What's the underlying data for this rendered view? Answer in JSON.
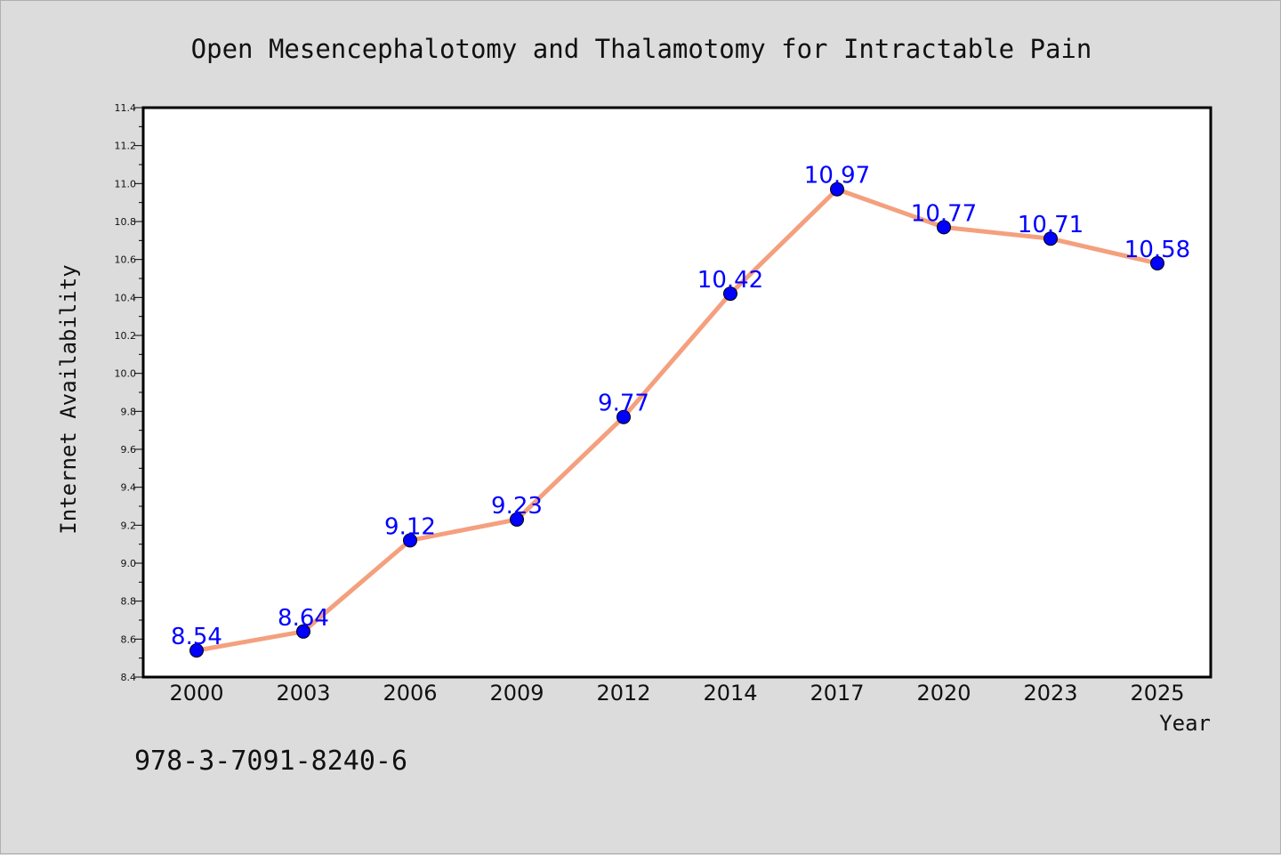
{
  "footnote": "978-3-7091-8240-6",
  "chart_data": {
    "type": "line",
    "title": "Open Mesencephalotomy and Thalamotomy for Intractable Pain",
    "xlabel": "Year",
    "ylabel": "Internet Availability",
    "categories": [
      "2000",
      "2003",
      "2006",
      "2009",
      "2012",
      "2014",
      "2017",
      "2020",
      "2023",
      "2025"
    ],
    "series": [
      {
        "values": [
          8.54,
          8.64,
          9.12,
          9.23,
          9.77,
          10.42,
          10.97,
          10.77,
          10.71,
          10.58
        ]
      }
    ],
    "data_labels": [
      "8.54",
      "8.64",
      "9.12",
      "9.23",
      "9.77",
      "10.42",
      "10.97",
      "10.77",
      "10.71",
      "10.58"
    ],
    "ylim": [
      8.4,
      11.4
    ],
    "yticks": [
      "8.4",
      "8.6",
      "8.8",
      "9.0",
      "9.2",
      "9.4",
      "9.6",
      "9.8",
      "10.0",
      "10.2",
      "10.4",
      "10.6",
      "10.8",
      "11.0",
      "11.2",
      "11.4"
    ],
    "grid": false,
    "colors": {
      "line": "#f4a07e",
      "marker": "#0000ff",
      "label": "#0000ff",
      "background": "#dcdcdc",
      "plot_area": "#ffffff"
    }
  }
}
